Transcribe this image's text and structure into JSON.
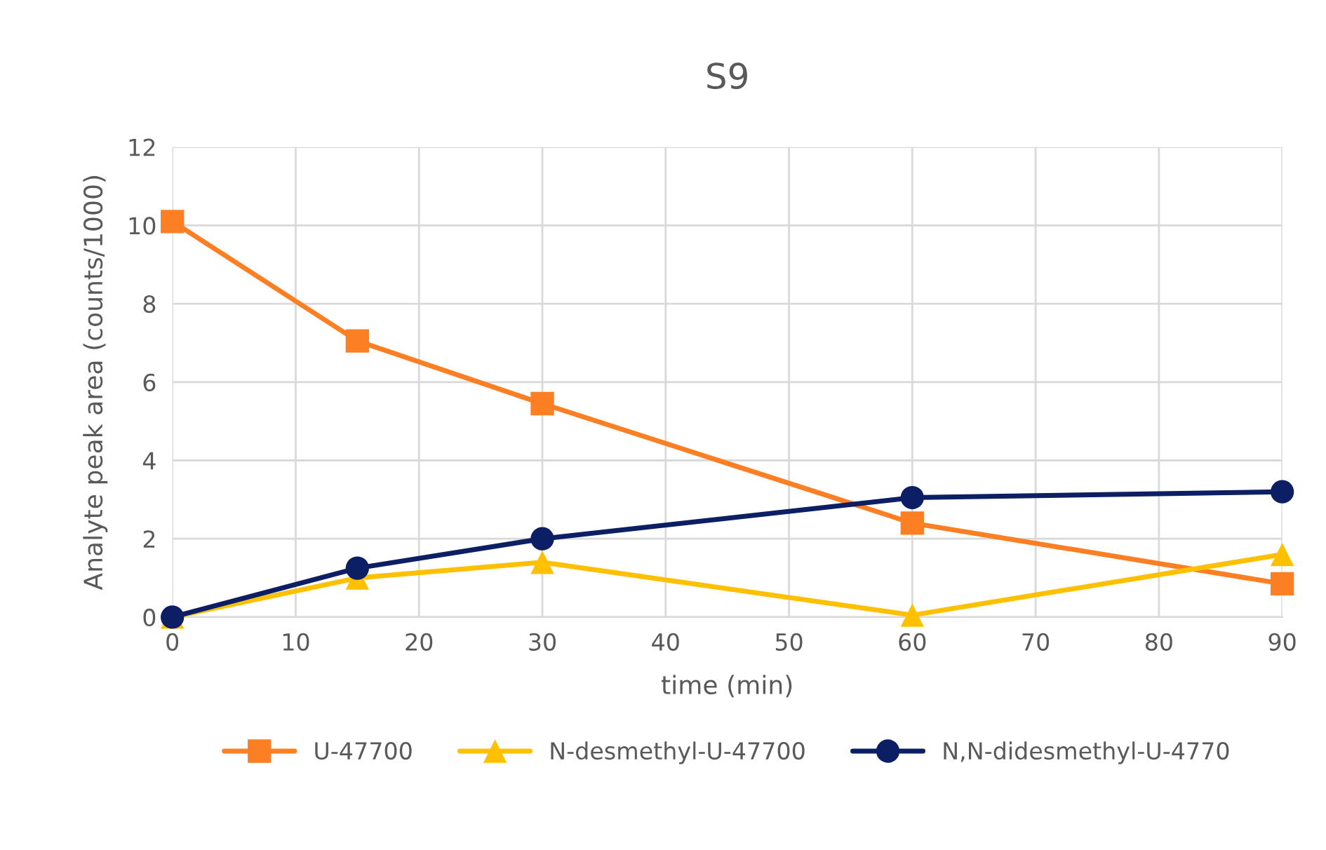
{
  "chart_data": {
    "type": "line",
    "title": "S9",
    "xlabel": "time (min)",
    "ylabel": "Analyte peak area (counts/1000)",
    "x": [
      0,
      15,
      30,
      60,
      90
    ],
    "series": [
      {
        "name": "U-47700",
        "color": "#fd7f23",
        "marker": "square",
        "values": [
          10.1,
          7.05,
          5.45,
          2.4,
          0.85
        ]
      },
      {
        "name": "N-desmethyl-U-47700",
        "color": "#ffc000",
        "marker": "triangle",
        "values": [
          0,
          1.0,
          1.4,
          0.05,
          1.6
        ]
      },
      {
        "name": "N,N-didesmethyl-U-4770",
        "color": "#0c1e64",
        "marker": "circle",
        "values": [
          0,
          1.25,
          2.0,
          3.05,
          3.2
        ]
      }
    ],
    "xlim": [
      0,
      90
    ],
    "xticks": [
      0,
      10,
      20,
      30,
      40,
      50,
      60,
      70,
      80,
      90
    ],
    "ylim": [
      0,
      12
    ],
    "yticks": [
      0,
      2,
      4,
      6,
      8,
      10,
      12
    ],
    "grid": true,
    "legend": "bottom",
    "line_style": "solid"
  }
}
